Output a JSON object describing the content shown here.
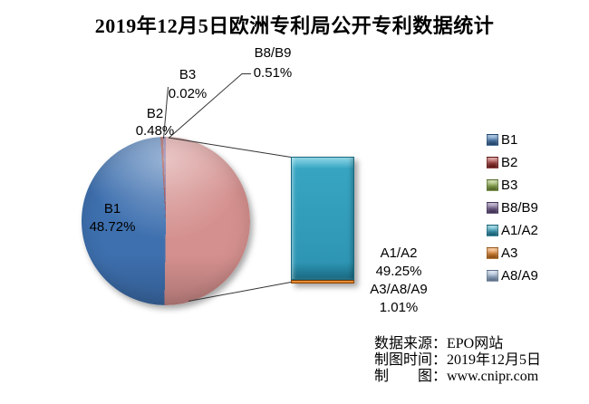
{
  "title": "2019年12月5日欧洲专利局公开专利数据统计",
  "chart_data": {
    "type": "bar-of-pie",
    "title": "2019年12月5日欧洲专利局公开专利数据统计",
    "pie_series": [
      {
        "label": "B1",
        "pct": 48.72,
        "color": "#3E70AF"
      },
      {
        "label": "B2",
        "pct": 0.48,
        "color": "#8E2A28"
      },
      {
        "label": "B3",
        "pct": 0.02,
        "color": "#89A54E"
      },
      {
        "label": "B8/B9",
        "pct": 0.51,
        "color": "#71588F"
      }
    ],
    "bar_series": [
      {
        "label": "A1/A2",
        "pct": 49.25,
        "color": "#3095B3"
      },
      {
        "label": "A3/A8/A9",
        "pct": 1.01,
        "color": "#E8882D"
      }
    ],
    "other_slice_color": "#D4908E",
    "legend_position": "right",
    "background": "#FFFFFF",
    "grid": false
  },
  "labels": {
    "b1": {
      "name": "B1",
      "pct": "48.72%"
    },
    "b2": {
      "name": "B2",
      "pct": "0.48%"
    },
    "b3": {
      "name": "B3",
      "pct": "0.02%"
    },
    "b8b9": {
      "name": "B8/B9",
      "pct": "0.51%"
    },
    "a12": {
      "name": "A1/A2",
      "pct": "49.25%"
    },
    "a389": {
      "name": "A3/A8/A9",
      "pct": "1.01%"
    }
  },
  "legend": {
    "items": [
      {
        "label": "B1",
        "light": "#6FA0D4",
        "dark": "#2D5A8D"
      },
      {
        "label": "B2",
        "light": "#C4605C",
        "dark": "#7E1F1D"
      },
      {
        "label": "B3",
        "light": "#AECA73",
        "dark": "#6E8B33"
      },
      {
        "label": "B8/B9",
        "light": "#9986B3",
        "dark": "#55416F"
      },
      {
        "label": "A1/A2",
        "light": "#5FC2D9",
        "dark": "#1F7D99"
      },
      {
        "label": "A3",
        "light": "#F9A65A",
        "dark": "#BF6A14"
      },
      {
        "label": "A8/A9",
        "light": "#C4D5EA",
        "dark": "#7C97B9"
      }
    ]
  },
  "footer": {
    "source": "数据来源：EPO网站",
    "date": "制图时间：2019年12月5日",
    "credit": "制　　图：www.cnipr.com"
  }
}
